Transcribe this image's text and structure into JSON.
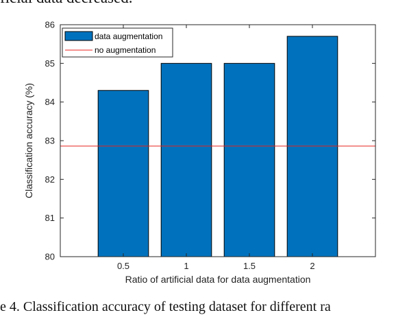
{
  "page": {
    "top_text": "ficial data decreased.",
    "bottom_text": "e 4.    Classification accuracy of testing dataset for different ra"
  },
  "chart_data": {
    "type": "bar",
    "categories": [
      "0.5",
      "1",
      "1.5",
      "2"
    ],
    "series": [
      {
        "name": "data augmentation",
        "values": [
          84.3,
          85.0,
          85.0,
          85.7
        ]
      }
    ],
    "reference_lines": [
      {
        "name": "no augmentation",
        "y": 82.86
      }
    ],
    "xlabel": "Ratio of artificial data for data augmentation",
    "ylabel": "Classification accuracy (%)",
    "ylim": [
      80,
      86
    ],
    "yticks": [
      "80",
      "81",
      "82",
      "83",
      "84",
      "85",
      "86"
    ],
    "grid": false,
    "legend_position": "top-left",
    "colors": {
      "bar": "#0072BD",
      "bar_edge": "#000000",
      "line": "#E8231E"
    }
  }
}
